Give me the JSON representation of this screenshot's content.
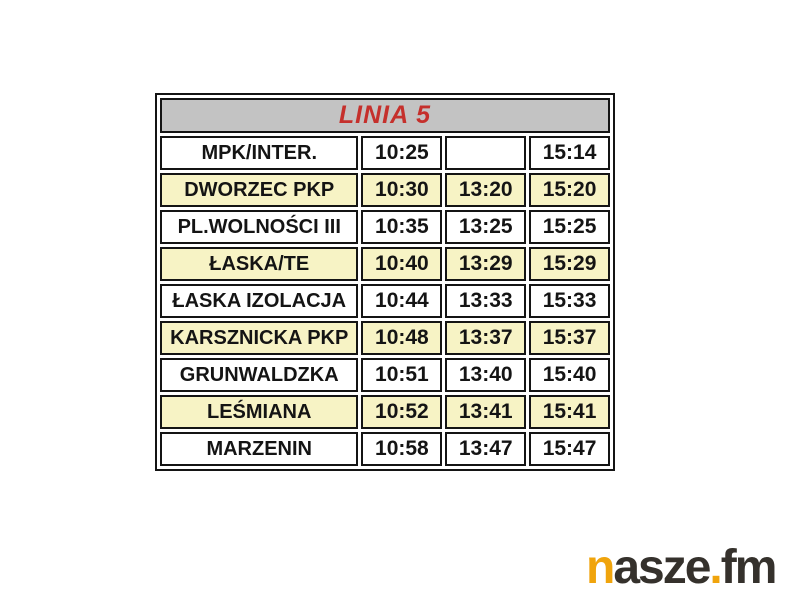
{
  "table": {
    "title": "LINIA 5",
    "rows": [
      {
        "stop": "MPK/INTER.",
        "times": [
          "10:25",
          "",
          "15:14"
        ],
        "highlight": false
      },
      {
        "stop": "DWORZEC PKP",
        "times": [
          "10:30",
          "13:20",
          "15:20"
        ],
        "highlight": true
      },
      {
        "stop": "PL.WOLNOŚCI III",
        "times": [
          "10:35",
          "13:25",
          "15:25"
        ],
        "highlight": false
      },
      {
        "stop": "ŁASKA/TE",
        "times": [
          "10:40",
          "13:29",
          "15:29"
        ],
        "highlight": true
      },
      {
        "stop": "ŁASKA IZOLACJA",
        "times": [
          "10:44",
          "13:33",
          "15:33"
        ],
        "highlight": false
      },
      {
        "stop": "KARSZNICKA PKP",
        "times": [
          "10:48",
          "13:37",
          "15:37"
        ],
        "highlight": true
      },
      {
        "stop": "GRUNWALDZKA",
        "times": [
          "10:51",
          "13:40",
          "15:40"
        ],
        "highlight": false
      },
      {
        "stop": "LEŚMIANA",
        "times": [
          "10:52",
          "13:41",
          "15:41"
        ],
        "highlight": true
      },
      {
        "stop": "MARZENIN",
        "times": [
          "10:58",
          "13:47",
          "15:47"
        ],
        "highlight": false
      }
    ]
  },
  "logo": {
    "part_n": "n",
    "part_asze": "asze",
    "part_dot": ".",
    "part_fm": "fm"
  },
  "colors": {
    "header_bg": "#c3c3c3",
    "title_red": "#c5302c",
    "row_highlight": "#f7f3c5",
    "border": "#141414",
    "logo_accent": "#f0a40c",
    "logo_dark": "#35312c"
  }
}
